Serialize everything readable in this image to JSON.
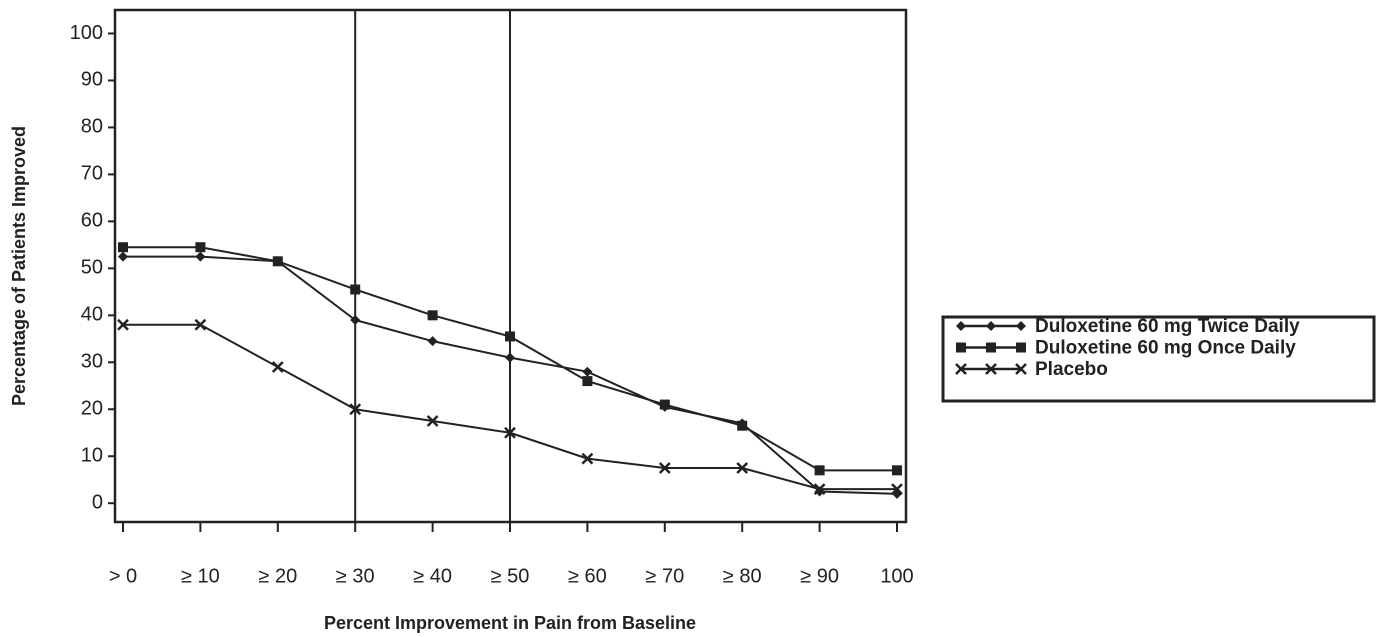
{
  "chart_data": {
    "type": "line",
    "x_label": "Percent Improvement in Pain from Baseline",
    "y_label": "Percentage of Patients Improved",
    "categories": [
      "> 0",
      "≥ 10",
      "≥ 20",
      "≥ 30",
      "≥ 40",
      "≥ 50",
      "≥ 60",
      "≥ 70",
      "≥ 80",
      "≥ 90",
      "100"
    ],
    "reference_lines": [
      "≥ 30",
      "≥ 50"
    ],
    "series": [
      {
        "name": "Duloxetine 60 mg Twice Daily",
        "color": "#222222",
        "marker": "diamond",
        "values": [
          52.5,
          52.5,
          51.5,
          39,
          34.5,
          31,
          28,
          20.5,
          17,
          2.5,
          2
        ]
      },
      {
        "name": "Duloxetine 60 mg Once Daily",
        "color": "#222222",
        "marker": "square",
        "values": [
          54.5,
          54.5,
          51.5,
          45.5,
          40,
          35.5,
          26,
          21,
          16.5,
          7,
          7
        ]
      },
      {
        "name": "Placebo",
        "color": "#222222",
        "marker": "x",
        "values": [
          38,
          38,
          29,
          20,
          17.5,
          15,
          9.5,
          7.5,
          7.5,
          3,
          3
        ]
      }
    ],
    "ylim": [
      -4,
      105
    ],
    "yticks": [
      0,
      10,
      20,
      30,
      40,
      50,
      60,
      70,
      80,
      90,
      100
    ],
    "grid": false,
    "legend": "right"
  }
}
